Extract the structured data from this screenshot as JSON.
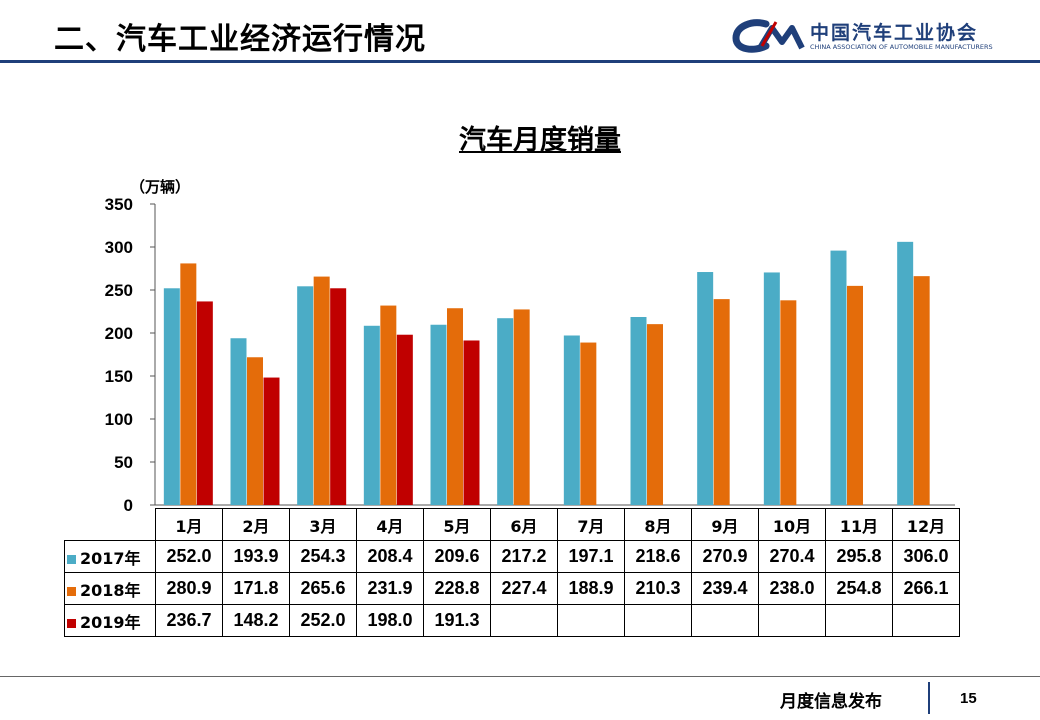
{
  "header": {
    "title": "二、汽车工业经济运行情况",
    "logo_cn": "中国汽车工业协会",
    "logo_en": "CHINA ASSOCIATION OF AUTOMOBILE MANUFACTURERS",
    "brand_color": "#1f3f7a"
  },
  "chart_data": {
    "type": "bar",
    "title": "汽车月度销量",
    "ylabel": "（万辆）",
    "xlabel": "",
    "ylim": [
      0,
      350
    ],
    "yticks": [
      "0",
      "50",
      "100",
      "150",
      "200",
      "250",
      "300",
      "350"
    ],
    "grid": false,
    "legend": "table-below",
    "categories": [
      "1月",
      "2月",
      "3月",
      "4月",
      "5月",
      "6月",
      "7月",
      "8月",
      "9月",
      "10月",
      "11月",
      "12月"
    ],
    "series": [
      {
        "name": "2017年",
        "color": "#4bacc6",
        "values": [
          252.0,
          193.9,
          254.3,
          208.4,
          209.6,
          217.2,
          197.1,
          218.6,
          270.9,
          270.4,
          295.8,
          306.0
        ],
        "labels": [
          "252.0",
          "193.9",
          "254.3",
          "208.4",
          "209.6",
          "217.2",
          "197.1",
          "218.6",
          "270.9",
          "270.4",
          "295.8",
          "306.0"
        ]
      },
      {
        "name": "2018年",
        "color": "#e46c0a",
        "values": [
          280.9,
          171.8,
          265.6,
          231.9,
          228.8,
          227.4,
          188.9,
          210.3,
          239.4,
          238.0,
          254.8,
          266.1
        ],
        "labels": [
          "280.9",
          "171.8",
          "265.6",
          "231.9",
          "228.8",
          "227.4",
          "188.9",
          "210.3",
          "239.4",
          "238.0",
          "254.8",
          "266.1"
        ]
      },
      {
        "name": "2019年",
        "color": "#c00000",
        "values": [
          236.7,
          148.2,
          252.0,
          198.0,
          191.3,
          null,
          null,
          null,
          null,
          null,
          null,
          null
        ],
        "labels": [
          "236.7",
          "148.2",
          "252.0",
          "198.0",
          "191.3",
          "",
          "",
          "",
          "",
          "",
          "",
          ""
        ]
      }
    ]
  },
  "footer": {
    "text": "月度信息发布",
    "page_number": "15"
  }
}
